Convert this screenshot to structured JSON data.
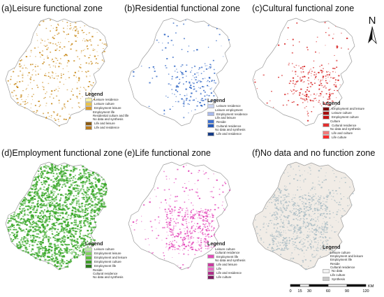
{
  "panels": [
    {
      "title": "(a)Leisure functional zone",
      "dot_color": "#c98a1a",
      "legend": {
        "heading": "Legend",
        "items": [
          {
            "label": "Leisure residence",
            "color": "#f4f1a8"
          },
          {
            "label": "Leisure culture",
            "color": "#e8c44a"
          },
          {
            "label": "Employment leisure",
            "color": "#d99a2b"
          },
          {
            "label": "Employment life",
            "color": ""
          },
          {
            "label": "Residential culture and life",
            "color": ""
          },
          {
            "label": "No data and synthesis",
            "color": ""
          },
          {
            "label": "Life and leisure",
            "color": "#8a5a14"
          },
          {
            "label": "Life and residence",
            "color": "#b97a1d"
          }
        ]
      }
    },
    {
      "title": "(b)Residential functional zone",
      "dot_color": "#2b63c4",
      "legend": {
        "heading": "Legend",
        "items": [
          {
            "label": "Leisure residence",
            "color": "#c9d4f2"
          },
          {
            "label": "Leisure employment",
            "color": ""
          },
          {
            "label": "Employment residence",
            "color": "#a7b9ea"
          },
          {
            "label": "Life and leisure",
            "color": ""
          },
          {
            "label": "Reside",
            "color": "#3b6fd0"
          },
          {
            "label": "Cultural residence",
            "color": "#2458b8"
          },
          {
            "label": "No data and synthesis",
            "color": ""
          },
          {
            "label": "Life and residence",
            "color": "#153b86"
          }
        ]
      }
    },
    {
      "title": "(c)Cultural functional zone",
      "dot_color": "#d61a1a",
      "legend": {
        "heading": "Legend",
        "items": [
          {
            "label": "Employment and leisure",
            "color": "#7a0b0b"
          },
          {
            "label": "Leisure culture",
            "color": "#a50f0f"
          },
          {
            "label": "Employment culture",
            "color": "#c41414"
          },
          {
            "label": "Culture",
            "color": ""
          },
          {
            "label": "Cultural residence",
            "color": "#e23030"
          },
          {
            "label": "No data and synthesis",
            "color": ""
          },
          {
            "label": "Life and culture",
            "color": "#f07a7a"
          },
          {
            "label": "Life culture",
            "color": "#ff2a2a"
          }
        ]
      }
    },
    {
      "title": "(d)Employment functional zone",
      "dot_color": "#3aa82a",
      "legend": {
        "heading": "Legend",
        "items": [
          {
            "label": "Leisure culture",
            "color": "#b9e8a4"
          },
          {
            "label": "Employment leisure",
            "color": "#7fd15e"
          },
          {
            "label": "Employment and leisure",
            "color": "#5bbf3c"
          },
          {
            "label": "Employment culture",
            "color": "#3d9d28"
          },
          {
            "label": "Employment life",
            "color": "#2b7c1c"
          },
          {
            "label": "Reside",
            "color": ""
          },
          {
            "label": "Cultural residence",
            "color": ""
          },
          {
            "label": "No data and synthesis",
            "color": ""
          }
        ]
      }
    },
    {
      "title": "(e)Life functional zone",
      "dot_color": "#e23fb6",
      "legend": {
        "heading": "Legend",
        "items": [
          {
            "label": "Leisure culture",
            "color": ""
          },
          {
            "label": "Cultural residence",
            "color": ""
          },
          {
            "label": "Employment life",
            "color": "#e24db8"
          },
          {
            "label": "No data and synthesis",
            "color": ""
          },
          {
            "label": "Life and leisure",
            "color": "#c93aa0"
          },
          {
            "label": "Life",
            "color": "#e86ac4"
          },
          {
            "label": "Life and residence",
            "color": "#b02e8a"
          },
          {
            "label": "Life culture",
            "color": "#7e1c61"
          }
        ]
      }
    },
    {
      "title": "(f)No data and no function zone",
      "dot_color": "#a9bcc4",
      "legend": {
        "heading": "Legend",
        "items": [
          {
            "label": "Leisure culture",
            "color": ""
          },
          {
            "label": "Employment and leisure",
            "color": ""
          },
          {
            "label": "Employment life",
            "color": ""
          },
          {
            "label": "Reside",
            "color": ""
          },
          {
            "label": "Cultural residence",
            "color": ""
          },
          {
            "label": "No data",
            "color": "#f2f2f2"
          },
          {
            "label": "Life culture",
            "color": ""
          },
          {
            "label": "Synthesis",
            "color": "#c9c9c9"
          }
        ]
      }
    }
  ],
  "north_label": "N",
  "scale_bar": {
    "ticks": [
      "0",
      "15",
      "30",
      "60",
      "90",
      "120"
    ],
    "tick_values": [
      0,
      15,
      30,
      60,
      90,
      120
    ],
    "unit": "KM"
  }
}
